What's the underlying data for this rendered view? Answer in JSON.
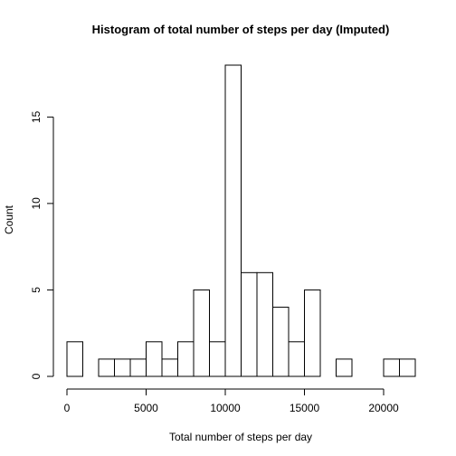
{
  "chart_data": {
    "type": "bar",
    "title": "Histogram of total number of steps per day (Imputed)",
    "xlabel": "Total number of steps per day",
    "ylabel": "Count",
    "bin_width": 1000,
    "bins": [
      {
        "x0": 0,
        "x1": 1000,
        "count": 2
      },
      {
        "x0": 1000,
        "x1": 2000,
        "count": 0
      },
      {
        "x0": 2000,
        "x1": 3000,
        "count": 1
      },
      {
        "x0": 3000,
        "x1": 4000,
        "count": 1
      },
      {
        "x0": 4000,
        "x1": 5000,
        "count": 1
      },
      {
        "x0": 5000,
        "x1": 6000,
        "count": 2
      },
      {
        "x0": 6000,
        "x1": 7000,
        "count": 1
      },
      {
        "x0": 7000,
        "x1": 8000,
        "count": 2
      },
      {
        "x0": 8000,
        "x1": 9000,
        "count": 5
      },
      {
        "x0": 9000,
        "x1": 10000,
        "count": 2
      },
      {
        "x0": 10000,
        "x1": 11000,
        "count": 18
      },
      {
        "x0": 11000,
        "x1": 12000,
        "count": 6
      },
      {
        "x0": 12000,
        "x1": 13000,
        "count": 6
      },
      {
        "x0": 13000,
        "x1": 14000,
        "count": 4
      },
      {
        "x0": 14000,
        "x1": 15000,
        "count": 2
      },
      {
        "x0": 15000,
        "x1": 16000,
        "count": 5
      },
      {
        "x0": 16000,
        "x1": 17000,
        "count": 0
      },
      {
        "x0": 17000,
        "x1": 18000,
        "count": 1
      },
      {
        "x0": 18000,
        "x1": 19000,
        "count": 0
      },
      {
        "x0": 19000,
        "x1": 20000,
        "count": 0
      },
      {
        "x0": 20000,
        "x1": 21000,
        "count": 1
      },
      {
        "x0": 21000,
        "x1": 22000,
        "count": 1
      }
    ],
    "x_ticks": [
      {
        "value": 0,
        "label": "0"
      },
      {
        "value": 5000,
        "label": "5000"
      },
      {
        "value": 10000,
        "label": "10000"
      },
      {
        "value": 15000,
        "label": "15000"
      },
      {
        "value": 20000,
        "label": "20000"
      }
    ],
    "y_ticks": [
      {
        "value": 0,
        "label": "0"
      },
      {
        "value": 5,
        "label": "5"
      },
      {
        "value": 10,
        "label": "10"
      },
      {
        "value": 15,
        "label": "15"
      }
    ],
    "xlim": [
      0,
      22000
    ],
    "ylim": [
      0,
      18
    ],
    "grid": false,
    "legend": "none"
  }
}
